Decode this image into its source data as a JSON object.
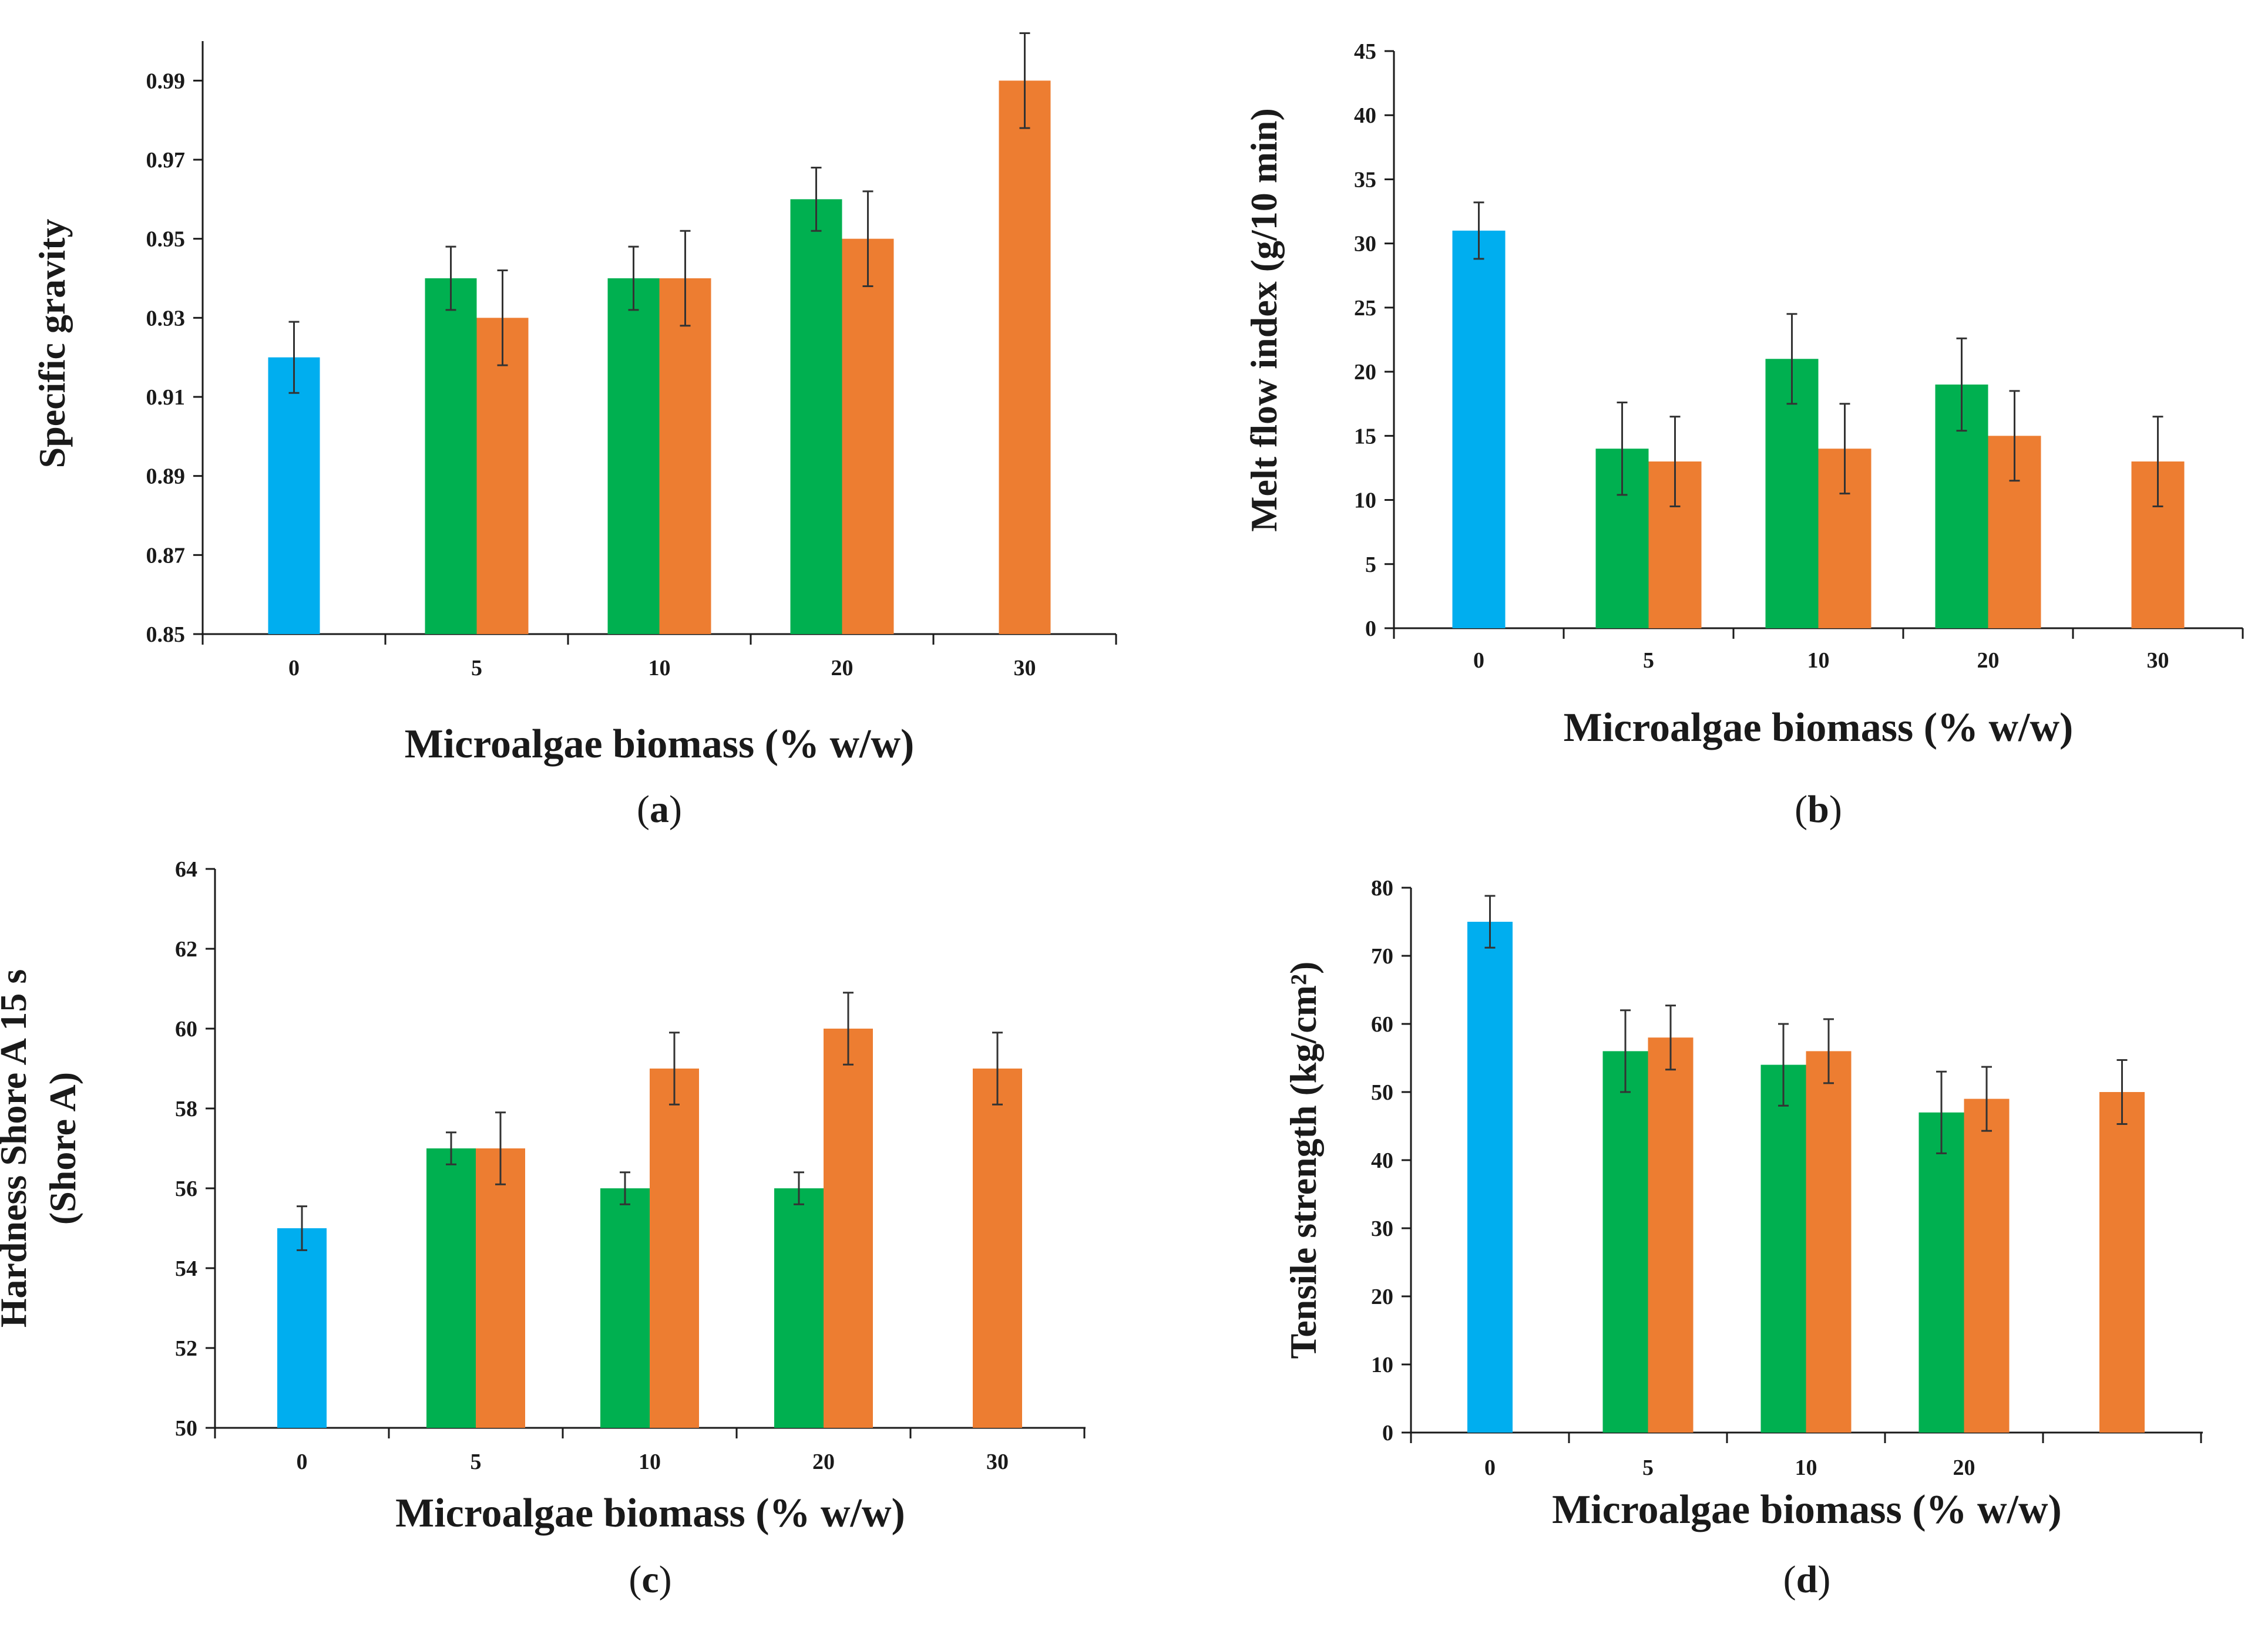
{
  "colors": {
    "control": "#00AEEF",
    "series_green": "#00B050",
    "series_orange": "#ED7D31"
  },
  "chart_data": [
    {
      "type": "bar",
      "panel_letter": "a",
      "xlabel": "Microalgae biomass (% w/w)",
      "ylabel": [
        "Specific gravity"
      ],
      "categories": [
        "0",
        "5",
        "10",
        "20",
        "30"
      ],
      "ylim": [
        0.85,
        1.0
      ],
      "yticks": [
        0.85,
        0.87,
        0.89,
        0.91,
        0.93,
        0.95,
        0.97,
        0.99
      ],
      "ytick_labels": [
        "0.85",
        "0.87",
        "0.89",
        "0.91",
        "0.93",
        "0.95",
        "0.97",
        "0.99"
      ],
      "series": [
        {
          "color": "#00AEEF",
          "values": [
            0.92,
            null,
            null,
            null,
            null
          ],
          "errors": [
            0.009,
            null,
            null,
            null,
            null
          ]
        },
        {
          "color": "#00B050",
          "values": [
            null,
            0.94,
            0.94,
            0.96,
            null
          ],
          "errors": [
            null,
            0.008,
            0.008,
            0.008,
            null
          ]
        },
        {
          "color": "#ED7D31",
          "values": [
            null,
            0.93,
            0.94,
            0.95,
            0.99
          ],
          "errors": [
            null,
            0.012,
            0.012,
            0.012,
            0.012
          ]
        }
      ]
    },
    {
      "type": "bar",
      "panel_letter": "b",
      "xlabel": "Microalgae biomass (% w/w)",
      "ylabel": [
        "Melt flow index (g/10 min)"
      ],
      "categories": [
        "0",
        "5",
        "10",
        "20",
        "30"
      ],
      "ylim": [
        0,
        45
      ],
      "yticks": [
        0,
        5,
        10,
        15,
        20,
        25,
        30,
        35,
        40,
        45
      ],
      "ytick_labels": [
        "0",
        "5",
        "10",
        "15",
        "20",
        "25",
        "30",
        "35",
        "40",
        "45"
      ],
      "series": [
        {
          "color": "#00AEEF",
          "values": [
            31,
            null,
            null,
            null,
            null
          ],
          "errors": [
            2.2,
            null,
            null,
            null,
            null
          ]
        },
        {
          "color": "#00B050",
          "values": [
            null,
            14,
            21,
            19,
            null
          ],
          "errors": [
            null,
            3.6,
            3.5,
            3.6,
            null
          ]
        },
        {
          "color": "#ED7D31",
          "values": [
            null,
            13,
            14,
            15,
            13
          ],
          "errors": [
            null,
            3.5,
            3.5,
            3.5,
            3.5
          ]
        }
      ]
    },
    {
      "type": "bar",
      "panel_letter": "c",
      "xlabel": "Microalgae biomass (% w/w)",
      "ylabel": [
        "Hardness Shore A 15 s",
        "(Shore A)"
      ],
      "categories": [
        "0",
        "5",
        "10",
        "20",
        "30"
      ],
      "ylim": [
        50,
        64
      ],
      "yticks": [
        50,
        52,
        54,
        56,
        58,
        60,
        62,
        64
      ],
      "ytick_labels": [
        "50",
        "52",
        "54",
        "56",
        "58",
        "60",
        "62",
        "64"
      ],
      "series": [
        {
          "color": "#00AEEF",
          "values": [
            55,
            null,
            null,
            null,
            null
          ],
          "errors": [
            0.55,
            null,
            null,
            null,
            null
          ]
        },
        {
          "color": "#00B050",
          "values": [
            null,
            57,
            56,
            56,
            null
          ],
          "errors": [
            null,
            0.4,
            0.4,
            0.4,
            null
          ]
        },
        {
          "color": "#ED7D31",
          "values": [
            null,
            57,
            59,
            60,
            59
          ],
          "errors": [
            null,
            0.9,
            0.9,
            0.9,
            0.9
          ]
        }
      ]
    },
    {
      "type": "bar",
      "panel_letter": "d",
      "xlabel": "Microalgae biomass (% w/w)",
      "ylabel": [
        "Tensile strength (kg/cm²)"
      ],
      "categories": [
        "0",
        "5",
        "10",
        "20",
        ""
      ],
      "ylim": [
        0,
        80
      ],
      "yticks": [
        0,
        10,
        20,
        30,
        40,
        50,
        60,
        70,
        80
      ],
      "ytick_labels": [
        "0",
        "10",
        "20",
        "30",
        "40",
        "50",
        "60",
        "70",
        "80"
      ],
      "series": [
        {
          "color": "#00AEEF",
          "values": [
            75,
            null,
            null,
            null,
            null
          ],
          "errors": [
            3.8,
            null,
            null,
            null,
            null
          ]
        },
        {
          "color": "#00B050",
          "values": [
            null,
            56,
            54,
            47,
            null
          ],
          "errors": [
            null,
            6,
            6,
            6,
            null
          ]
        },
        {
          "color": "#ED7D31",
          "values": [
            null,
            58,
            56,
            49,
            50
          ],
          "errors": [
            null,
            4.7,
            4.7,
            4.7,
            4.7
          ]
        }
      ]
    }
  ]
}
